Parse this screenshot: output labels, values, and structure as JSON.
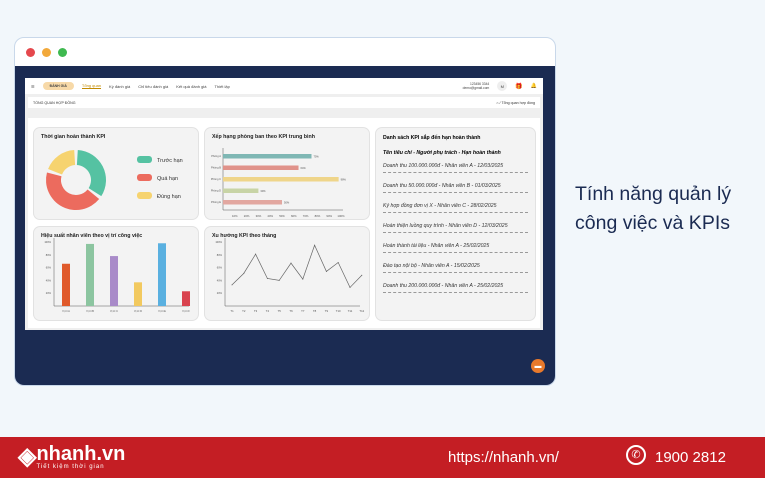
{
  "header": {
    "menu_icon": "hamburger-icon",
    "badge": "ĐÁNH GIÁ",
    "nav": [
      "Tổng quan",
      "Kỳ đánh giá",
      "Chỉ tiêu đánh giá",
      "Kết quả đánh giá",
      "Thiết lập"
    ],
    "phone": "123456 3344",
    "email": "demo@gmail.com",
    "avatar": "M"
  },
  "breadcrumb": {
    "title": "TỔNG QUAN HỢP ĐỒNG",
    "path": "Tổng quan hợp đồng"
  },
  "chart_data": [
    {
      "type": "pie",
      "title": "Thời gian hoàn thành KPI",
      "categories": [
        "Trước hạn",
        "Quá hạn",
        "Đúng hạn"
      ],
      "values": [
        35,
        45,
        20
      ],
      "colors": [
        "#55c2a2",
        "#ec6b5e",
        "#f6d36f"
      ]
    },
    {
      "type": "bar",
      "orientation": "horizontal",
      "title": "Xếp hạng phòng ban theo KPI trung bình",
      "categories": [
        "Phòng A",
        "Phòng B",
        "Phòng C",
        "Phòng D",
        "Phòng E"
      ],
      "values": [
        75,
        64,
        98,
        30,
        50
      ],
      "labels": [
        "75%",
        "64%",
        "98%",
        "30%",
        "50%"
      ],
      "colors": [
        "#7fb7b4",
        "#e0928a",
        "#efd58a",
        "#c8d4a6",
        "#e2a7a0"
      ],
      "xticks": [
        "10%",
        "20%",
        "30%",
        "40%",
        "50%",
        "60%",
        "70%",
        "80%",
        "90%",
        "100%"
      ],
      "xlim": [
        0,
        100
      ]
    },
    {
      "type": "bar",
      "title": "Hiệu suất nhân viên theo vị trí công việc",
      "categories": [
        "Vị trí A",
        "Vị trí B",
        "Vị trí C",
        "Vị trí D",
        "Vị trí E",
        "Vị trí F"
      ],
      "values": [
        66,
        97,
        78,
        37,
        98,
        23
      ],
      "colors": [
        "#e05a2b",
        "#8cc5a0",
        "#a98bc9",
        "#f2c95f",
        "#5ab0e0",
        "#d9434f"
      ],
      "yticks": [
        "20%",
        "40%",
        "60%",
        "80%",
        "100%"
      ],
      "ylim": [
        0,
        100
      ]
    },
    {
      "type": "line",
      "title": "Xu hướng KPI theo tháng",
      "categories": [
        "T1",
        "T2",
        "T3",
        "T4",
        "T5",
        "T6",
        "T7",
        "T8",
        "T9",
        "T10",
        "T11",
        "T12"
      ],
      "values": [
        33,
        51,
        81,
        43,
        40,
        67,
        42,
        95,
        54,
        68,
        29,
        48
      ],
      "yticks": [
        "20%",
        "40%",
        "60%",
        "80%",
        "100%"
      ],
      "ylim": [
        0,
        100
      ]
    }
  ],
  "kpi_list": {
    "title": "Danh sách KPI sắp đến hạn hoàn thành",
    "header": "Tên tiêu chí - Người phụ trách - Hạn hoàn thành",
    "items": [
      "Doanh thu 100.000.000đ - Nhân viên A - 12/03/2025",
      "Doanh thu 50.000.000đ - Nhân viên B - 01/03/2025",
      "Ký hợp đồng đơn vị X - Nhân viên C - 28/02/2025",
      "Hoàn thiện luồng quy trình - Nhân viên D - 12/03/2025",
      "Hoàn thành tài liệu - Nhân viên A - 25/02/2025",
      "Đào tạo nội bộ - Nhân viên A - 15/02/2025",
      "Doanh thu 200.000.000đ - Nhân viên A - 25/02/2025"
    ]
  },
  "side_text": [
    "Tính năng quản lý",
    "công việc và KPIs"
  ],
  "footer": {
    "logo": "nhanh.vn",
    "slogan": "Tiết kiệm thời gian",
    "url": "https://nhanh.vn/",
    "phone": "1900 2812"
  }
}
